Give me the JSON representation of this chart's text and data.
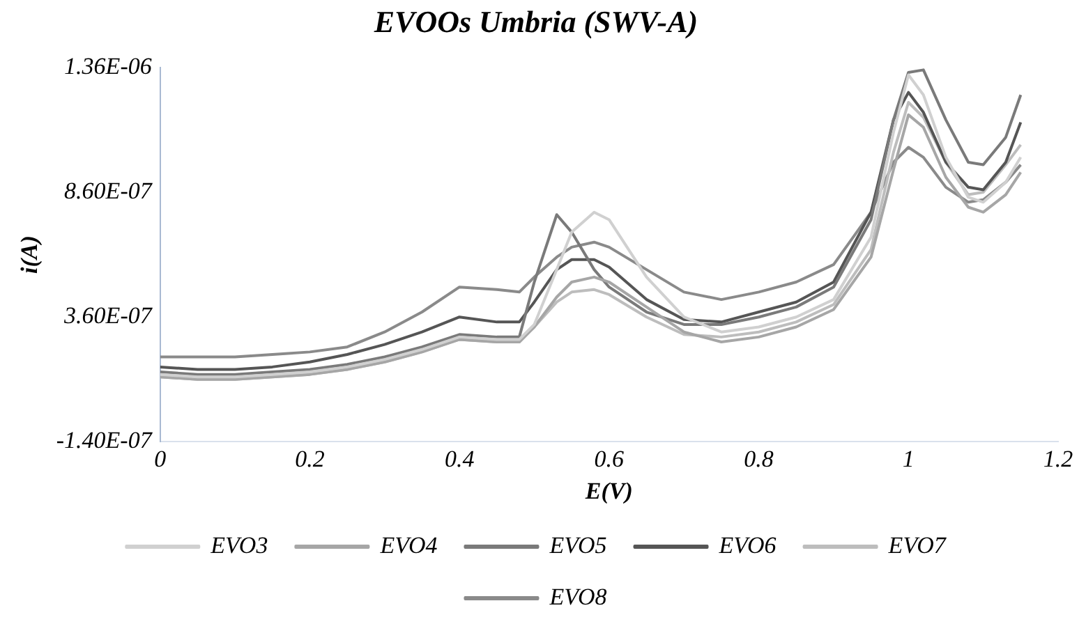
{
  "chart_data": {
    "type": "line",
    "title": "EVOOs Umbria (SWV-A)",
    "xlabel": "E(V)",
    "ylabel": "i(A)",
    "x": [
      0,
      0.05,
      0.1,
      0.15,
      0.2,
      0.25,
      0.3,
      0.35,
      0.4,
      0.45,
      0.48,
      0.5,
      0.53,
      0.55,
      0.58,
      0.6,
      0.65,
      0.7,
      0.75,
      0.8,
      0.85,
      0.9,
      0.95,
      0.98,
      1.0,
      1.02,
      1.05,
      1.08,
      1.1,
      1.13,
      1.15
    ],
    "xlim": [
      0,
      1.2
    ],
    "xticks": [
      0,
      0.2,
      0.4,
      0.6,
      0.8,
      1,
      1.2
    ],
    "ylim": [
      -1.4e-07,
      1.36e-06
    ],
    "yticks": [
      {
        "value": -1.4e-07,
        "label": "-1.40E-07"
      },
      {
        "value": 3.6e-07,
        "label": "3.60E-07"
      },
      {
        "value": 8.6e-07,
        "label": "8.60E-07"
      },
      {
        "value": 1.36e-06,
        "label": "1.36E-06"
      }
    ],
    "grid": false,
    "legend": "bottom",
    "marker": "none",
    "line_style": "solid",
    "series": [
      {
        "name": "EVO3",
        "color": "#d0d0d0",
        "values": [
          1.3e-07,
          1.2e-07,
          1.2e-07,
          1.3e-07,
          1.4e-07,
          1.6e-07,
          1.9e-07,
          2.3e-07,
          2.8e-07,
          2.7e-07,
          2.7e-07,
          3.3e-07,
          5.5e-07,
          7e-07,
          7.8e-07,
          7.5e-07,
          5.2e-07,
          3.6e-07,
          3e-07,
          3.2e-07,
          3.6e-07,
          4.3e-07,
          6.8e-07,
          1.1e-06,
          1.33e-06,
          1.25e-06,
          1e-06,
          8.4e-07,
          8.2e-07,
          9e-07,
          1e-06
        ]
      },
      {
        "name": "EVO4",
        "color": "#a6a6a6",
        "values": [
          1.2e-07,
          1.1e-07,
          1.1e-07,
          1.2e-07,
          1.3e-07,
          1.5e-07,
          1.8e-07,
          2.2e-07,
          2.7e-07,
          2.6e-07,
          2.6e-07,
          3.2e-07,
          4.4e-07,
          5e-07,
          5.2e-07,
          5e-07,
          4e-07,
          3e-07,
          2.6e-07,
          2.8e-07,
          3.2e-07,
          3.9e-07,
          6e-07,
          9.5e-07,
          1.17e-06,
          1.12e-06,
          9.2e-07,
          8e-07,
          7.8e-07,
          8.5e-07,
          9.4e-07
        ]
      },
      {
        "name": "EVO5",
        "color": "#7a7a7a",
        "values": [
          1.4e-07,
          1.3e-07,
          1.3e-07,
          1.4e-07,
          1.5e-07,
          1.7e-07,
          2e-07,
          2.4e-07,
          2.9e-07,
          2.8e-07,
          2.8e-07,
          5e-07,
          7.7e-07,
          7e-07,
          5.5e-07,
          4.8e-07,
          3.8e-07,
          3.3e-07,
          3.3e-07,
          3.6e-07,
          4e-07,
          4.8e-07,
          7.5e-07,
          1.15e-06,
          1.34e-06,
          1.35e-06,
          1.15e-06,
          9.8e-07,
          9.7e-07,
          1.08e-06,
          1.25e-06
        ]
      },
      {
        "name": "EVO6",
        "color": "#555555",
        "values": [
          1.6e-07,
          1.5e-07,
          1.5e-07,
          1.6e-07,
          1.8e-07,
          2.1e-07,
          2.5e-07,
          3e-07,
          3.6e-07,
          3.4e-07,
          3.4e-07,
          4.2e-07,
          5.5e-07,
          5.9e-07,
          5.9e-07,
          5.6e-07,
          4.3e-07,
          3.5e-07,
          3.4e-07,
          3.8e-07,
          4.2e-07,
          5e-07,
          7.8e-07,
          1.15e-06,
          1.26e-06,
          1.18e-06,
          9.8e-07,
          8.8e-07,
          8.7e-07,
          9.8e-07,
          1.14e-06
        ]
      },
      {
        "name": "EVO7",
        "color": "#bdbdbd",
        "values": [
          1.2e-07,
          1.1e-07,
          1.1e-07,
          1.2e-07,
          1.3e-07,
          1.5e-07,
          1.8e-07,
          2.2e-07,
          2.7e-07,
          2.6e-07,
          2.6e-07,
          3.2e-07,
          4.2e-07,
          4.6e-07,
          4.7e-07,
          4.5e-07,
          3.6e-07,
          2.9e-07,
          2.8e-07,
          3e-07,
          3.4e-07,
          4.1e-07,
          6.3e-07,
          1.02e-06,
          1.22e-06,
          1.16e-06,
          9.8e-07,
          8.5e-07,
          8.6e-07,
          9.7e-07,
          1.05e-06
        ]
      },
      {
        "name": "EVO8",
        "color": "#8a8a8a",
        "values": [
          2e-07,
          2e-07,
          2e-07,
          2.1e-07,
          2.2e-07,
          2.4e-07,
          3e-07,
          3.8e-07,
          4.8e-07,
          4.7e-07,
          4.6e-07,
          5.2e-07,
          6e-07,
          6.4e-07,
          6.6e-07,
          6.4e-07,
          5.5e-07,
          4.6e-07,
          4.3e-07,
          4.6e-07,
          5e-07,
          5.7e-07,
          7.8e-07,
          9.8e-07,
          1.04e-06,
          1e-06,
          8.8e-07,
          8.2e-07,
          8.3e-07,
          9e-07,
          9.7e-07
        ]
      }
    ]
  }
}
